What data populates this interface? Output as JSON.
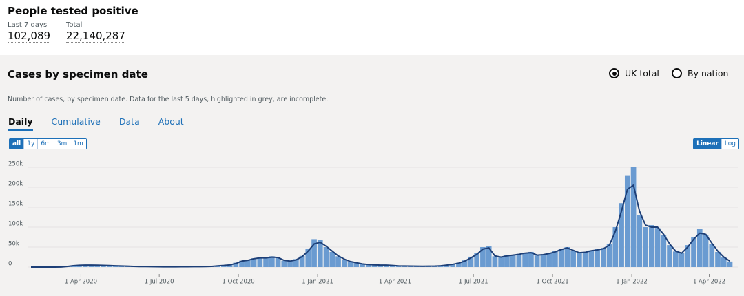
{
  "header": {
    "title": "People tested positive",
    "metrics": [
      {
        "label": "Last 7 days",
        "value": "102,089"
      },
      {
        "label": "Total",
        "value": "22,140,287"
      }
    ]
  },
  "card": {
    "title": "Cases by specimen date",
    "options": [
      "UK total",
      "By nation"
    ],
    "selected_option": 0,
    "description": "Number of cases, by specimen date. Data for the last 5 days, highlighted in grey, are incomplete.",
    "tabs": [
      "Daily",
      "Cumulative",
      "Data",
      "About"
    ],
    "active_tab": 0,
    "ranges": [
      "all",
      "1y",
      "6m",
      "3m",
      "1m"
    ],
    "active_range": 0,
    "scales": [
      "Linear",
      "Log"
    ],
    "active_scale": 0
  },
  "chart_data": {
    "type": "bar",
    "grid": true,
    "xlim": [
      "2020-01-30",
      "2022-05-05"
    ],
    "xticks": [
      {
        "value": "2020-04-01",
        "label": "1 Apr 2020"
      },
      {
        "value": "2020-07-01",
        "label": "1 Jul 2020"
      },
      {
        "value": "2020-10-01",
        "label": "1 Oct 2020"
      },
      {
        "value": "2021-01-01",
        "label": "1 Jan 2021"
      },
      {
        "value": "2021-04-01",
        "label": "1 Apr 2021"
      },
      {
        "value": "2021-07-01",
        "label": "1 Jul 2021"
      },
      {
        "value": "2021-10-01",
        "label": "1 Oct 2021"
      },
      {
        "value": "2022-01-01",
        "label": "1 Jan 2022"
      },
      {
        "value": "2022-04-01",
        "label": "1 Apr 2022"
      }
    ],
    "ylim": [
      0,
      280000
    ],
    "yticks": [
      0,
      {
        "value": 50000,
        "label": "50k"
      },
      {
        "value": 100000,
        "label": "100k"
      },
      {
        "value": 150000,
        "label": "150k"
      },
      {
        "value": 200000,
        "label": "200k"
      },
      {
        "value": 250000,
        "label": "250k"
      }
    ],
    "x": [
      "2020-02-03",
      "2020-02-10",
      "2020-02-17",
      "2020-02-24",
      "2020-03-02",
      "2020-03-09",
      "2020-03-16",
      "2020-03-23",
      "2020-03-30",
      "2020-04-06",
      "2020-04-13",
      "2020-04-20",
      "2020-04-27",
      "2020-05-04",
      "2020-05-11",
      "2020-05-18",
      "2020-05-25",
      "2020-06-01",
      "2020-06-08",
      "2020-06-15",
      "2020-06-22",
      "2020-06-29",
      "2020-07-06",
      "2020-07-13",
      "2020-07-20",
      "2020-07-27",
      "2020-08-03",
      "2020-08-10",
      "2020-08-17",
      "2020-08-24",
      "2020-08-31",
      "2020-09-07",
      "2020-09-14",
      "2020-09-21",
      "2020-09-28",
      "2020-10-05",
      "2020-10-12",
      "2020-10-19",
      "2020-10-26",
      "2020-11-02",
      "2020-11-09",
      "2020-11-16",
      "2020-11-23",
      "2020-11-30",
      "2020-12-07",
      "2020-12-14",
      "2020-12-21",
      "2020-12-28",
      "2021-01-04",
      "2021-01-11",
      "2021-01-18",
      "2021-01-25",
      "2021-02-01",
      "2021-02-08",
      "2021-02-15",
      "2021-02-22",
      "2021-03-01",
      "2021-03-08",
      "2021-03-15",
      "2021-03-22",
      "2021-03-29",
      "2021-04-05",
      "2021-04-12",
      "2021-04-19",
      "2021-04-26",
      "2021-05-03",
      "2021-05-10",
      "2021-05-17",
      "2021-05-24",
      "2021-05-31",
      "2021-06-07",
      "2021-06-14",
      "2021-06-21",
      "2021-06-28",
      "2021-07-05",
      "2021-07-12",
      "2021-07-19",
      "2021-07-26",
      "2021-08-02",
      "2021-08-09",
      "2021-08-16",
      "2021-08-23",
      "2021-08-30",
      "2021-09-06",
      "2021-09-13",
      "2021-09-20",
      "2021-09-27",
      "2021-10-04",
      "2021-10-11",
      "2021-10-18",
      "2021-10-25",
      "2021-11-01",
      "2021-11-08",
      "2021-11-15",
      "2021-11-22",
      "2021-11-29",
      "2021-12-06",
      "2021-12-13",
      "2021-12-20",
      "2021-12-27",
      "2022-01-03",
      "2022-01-10",
      "2022-01-17",
      "2022-01-24",
      "2022-01-31",
      "2022-02-07",
      "2022-02-14",
      "2022-02-21",
      "2022-02-28",
      "2022-03-07",
      "2022-03-14",
      "2022-03-21",
      "2022-03-28",
      "2022-04-04",
      "2022-04-11",
      "2022-04-18",
      "2022-04-25"
    ],
    "series": [
      {
        "type": "bar",
        "color": "#6a9bd1",
        "values": [
          0,
          0,
          0,
          20,
          80,
          400,
          2000,
          4200,
          5200,
          5400,
          5100,
          4600,
          4000,
          3900,
          3100,
          2900,
          2200,
          1700,
          1500,
          1100,
          1000,
          800,
          700,
          600,
          800,
          800,
          1000,
          900,
          1200,
          1400,
          2100,
          3300,
          4200,
          6000,
          11000,
          16000,
          18000,
          22000,
          25000,
          24000,
          27000,
          23000,
          16000,
          16000,
          20000,
          28000,
          45000,
          70000,
          68000,
          50000,
          38000,
          27000,
          19000,
          13000,
          11000,
          7500,
          6400,
          5600,
          5200,
          4800,
          3500,
          3100,
          2600,
          2500,
          2200,
          2300,
          2400,
          2600,
          3500,
          5500,
          7500,
          11000,
          17000,
          26000,
          36000,
          50000,
          52000,
          27000,
          26000,
          30000,
          31000,
          33000,
          36000,
          38000,
          29000,
          32000,
          35000,
          40000,
          46000,
          50000,
          41000,
          37000,
          38000,
          42000,
          45000,
          48000,
          58000,
          100000,
          160000,
          230000,
          250000,
          130000,
          100000,
          105000,
          98000,
          80000,
          55000,
          39000,
          36000,
          55000,
          75000,
          95000,
          80000,
          58000,
          38000,
          24000,
          14000
        ]
      },
      {
        "type": "line",
        "color": "#1d3f77",
        "values": [
          0,
          0,
          0,
          10,
          50,
          300,
          1500,
          3500,
          4500,
          5000,
          5000,
          4800,
          4200,
          3800,
          3200,
          2800,
          2300,
          1800,
          1400,
          1200,
          1000,
          900,
          700,
          700,
          700,
          800,
          900,
          1000,
          1100,
          1300,
          1800,
          3000,
          4000,
          5500,
          9000,
          15000,
          17000,
          21000,
          23000,
          23000,
          25000,
          24000,
          17000,
          15000,
          18000,
          26000,
          40000,
          58000,
          62000,
          52000,
          40000,
          28000,
          20000,
          14000,
          11000,
          8000,
          6500,
          5500,
          5000,
          5000,
          4000,
          3000,
          2700,
          2500,
          2300,
          2200,
          2300,
          2500,
          3200,
          5000,
          7000,
          10000,
          15000,
          23000,
          32000,
          45000,
          48000,
          28000,
          25000,
          28000,
          30000,
          32000,
          35000,
          36000,
          30000,
          31000,
          34000,
          38000,
          44000,
          48000,
          42000,
          36000,
          37000,
          41000,
          43000,
          46000,
          55000,
          90000,
          140000,
          195000,
          205000,
          140000,
          105000,
          100000,
          100000,
          82000,
          58000,
          40000,
          35000,
          50000,
          70000,
          85000,
          82000,
          60000,
          40000,
          25000,
          15000
        ]
      }
    ]
  }
}
